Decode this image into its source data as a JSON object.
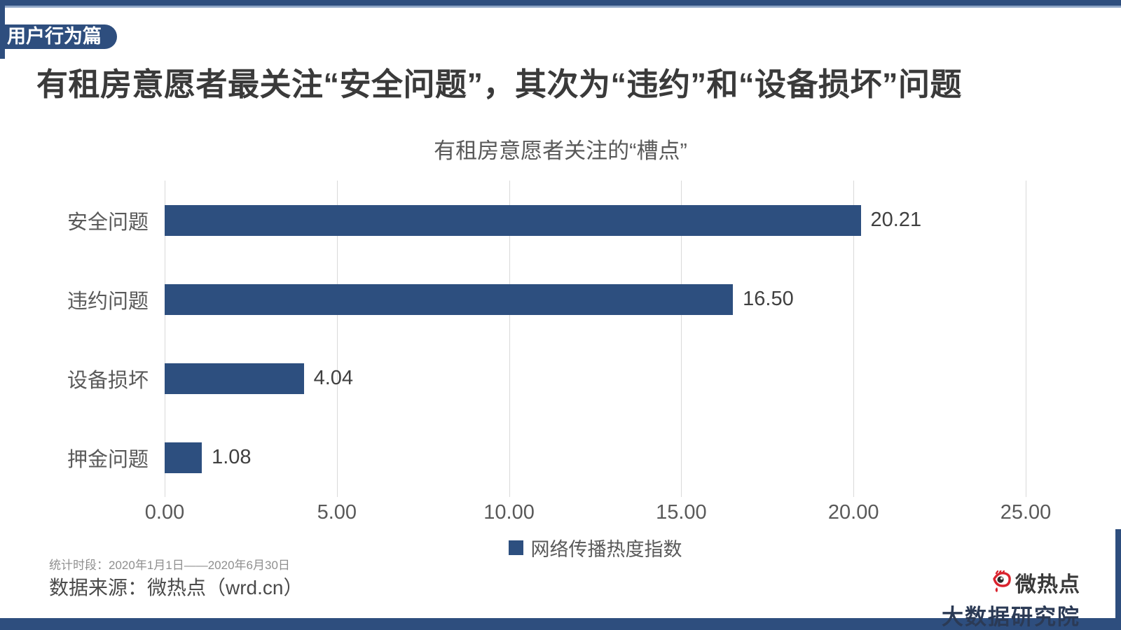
{
  "page": {
    "badge": "用户行为篇",
    "title": "有租房意愿者最关注“安全问题”，其次为“违约”和“设备损坏”问题"
  },
  "chart_data": {
    "type": "bar",
    "orientation": "horizontal",
    "title": "有租房意愿者关注的“槽点”",
    "categories": [
      "安全问题",
      "违约问题",
      "设备损坏",
      "押金问题"
    ],
    "values": [
      20.21,
      16.5,
      4.04,
      1.08
    ],
    "value_labels": [
      "20.21",
      "16.50",
      "4.04",
      "1.08"
    ],
    "xlim": [
      0,
      25
    ],
    "x_tick_values": [
      0,
      5,
      10,
      15,
      20,
      25
    ],
    "x_tick_labels": [
      "0.00",
      "5.00",
      "10.00",
      "15.00",
      "20.00",
      "25.00"
    ],
    "grid": true,
    "legend_position": "bottom",
    "legend": "网络传播热度指数",
    "bar_color": "#2D4F7F"
  },
  "footer": {
    "period": "统计时段：2020年1月1日——2020年6月30日",
    "source": "数据来源：微热点（wrd.cn）"
  },
  "logo": {
    "brand": "微热点",
    "subtitle": "大数据研究院"
  },
  "colors": {
    "navy": "#2E4E7E",
    "bar": "#2D4F7F",
    "light_line": "#8FA6C6",
    "brand_red": "#D9232E"
  }
}
